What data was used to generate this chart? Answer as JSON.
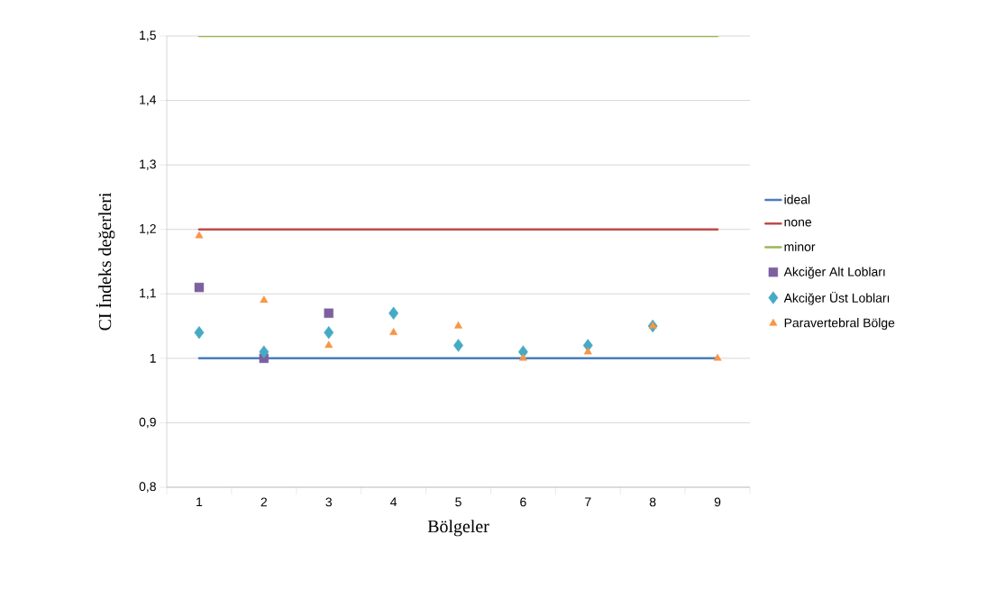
{
  "chart_data": {
    "type": "scatter",
    "xlabel": "Bölgeler",
    "ylabel": "CI İndeks değerleri",
    "categories": [
      "1",
      "2",
      "3",
      "4",
      "5",
      "6",
      "7",
      "8",
      "9"
    ],
    "series": [
      {
        "name": "ideal",
        "type": "line",
        "color": "#4a7ebb",
        "marker": "none",
        "line_style": "solid",
        "values": [
          1,
          1,
          1,
          1,
          1,
          1,
          1,
          1,
          1
        ]
      },
      {
        "name": "none",
        "type": "line",
        "color": "#be4b48",
        "marker": "none",
        "line_style": "solid",
        "values": [
          1.2,
          1.2,
          1.2,
          1.2,
          1.2,
          1.2,
          1.2,
          1.2,
          1.2
        ]
      },
      {
        "name": "minor",
        "type": "line",
        "color": "#98b954",
        "marker": "none",
        "line_style": "solid",
        "values": [
          1.5,
          1.5,
          1.5,
          1.5,
          1.5,
          1.5,
          1.5,
          1.5,
          1.5
        ]
      },
      {
        "name": "Akciğer Alt Lobları",
        "color": "#7d60a0",
        "marker": "square",
        "values": [
          1.11,
          1.0,
          1.07,
          null,
          null,
          null,
          null,
          null,
          null
        ]
      },
      {
        "name": "Akciğer Üst Lobları",
        "color": "#46aac5",
        "marker": "diamond",
        "values": [
          1.04,
          1.01,
          1.04,
          1.07,
          1.02,
          1.01,
          1.02,
          1.05,
          null
        ]
      },
      {
        "name": "Paravertebral Bölge",
        "color": "#f79646",
        "marker": "triangle",
        "values": [
          1.19,
          1.09,
          1.02,
          1.04,
          1.05,
          1.0,
          1.01,
          1.05,
          1.0
        ]
      }
    ],
    "ylim": [
      0.8,
      1.5
    ],
    "yticks": [
      {
        "value": 0.8,
        "label": "0,8"
      },
      {
        "value": 0.9,
        "label": "0,9"
      },
      1,
      {
        "value": 1.1,
        "label": "1,1"
      },
      {
        "value": 1.2,
        "label": "1,2"
      },
      {
        "value": 1.3,
        "label": "1,3"
      },
      {
        "value": 1.4,
        "label": "1,4"
      },
      {
        "value": 1.5,
        "label": "1,5"
      }
    ],
    "grid": "y",
    "legend": "right"
  }
}
